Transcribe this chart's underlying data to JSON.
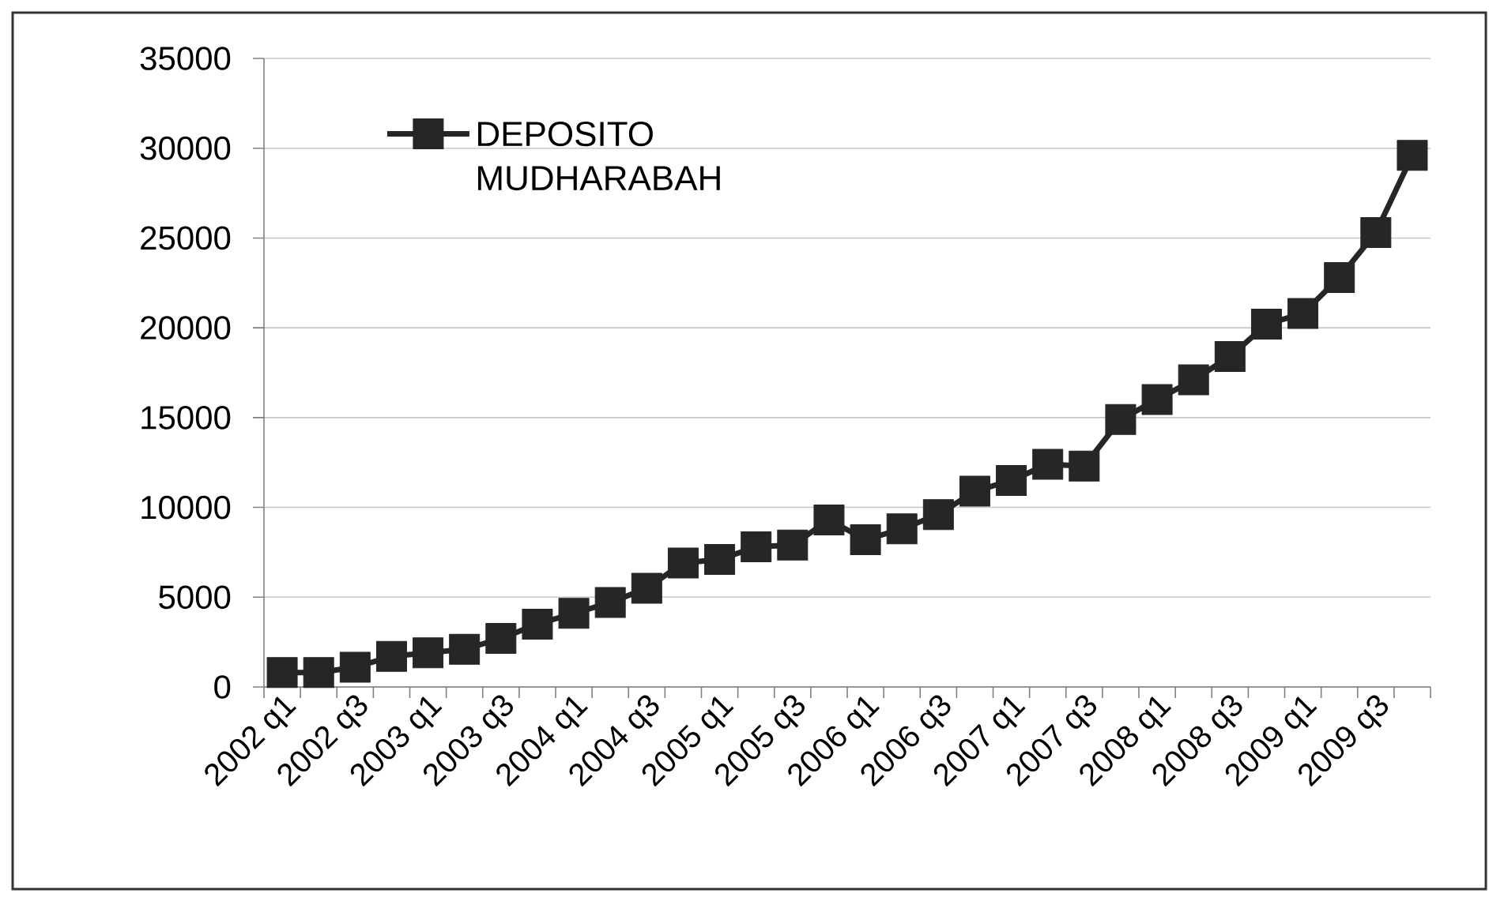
{
  "chart_data": {
    "type": "line",
    "categories": [
      "2002 q1",
      null,
      "2002 q3",
      null,
      "2003 q1",
      null,
      "2003 q3",
      null,
      "2004 q1",
      null,
      "2004 q3",
      null,
      "2005 q1",
      null,
      "2005 q3",
      null,
      "2006 q1",
      null,
      "2006 q3",
      null,
      "2007 q1",
      null,
      "2007 q3",
      null,
      "2008 q1",
      null,
      "2008 q3",
      null,
      "2009 q1",
      null,
      "2009 q3",
      null
    ],
    "series": [
      {
        "name": "DEPOSITO MUDHARABAH",
        "color": "#262626",
        "values": [
          800,
          800,
          1100,
          1700,
          1900,
          2100,
          2700,
          3500,
          4100,
          4700,
          5500,
          6900,
          7100,
          7800,
          7900,
          9300,
          8200,
          8800,
          9600,
          10900,
          11500,
          12400,
          12300,
          14900,
          16000,
          17100,
          18400,
          20200,
          20800,
          22800,
          25300,
          29600
        ]
      }
    ],
    "ylim": [
      0,
      35000
    ],
    "yticks": [
      0,
      5000,
      10000,
      15000,
      20000,
      25000,
      30000,
      35000
    ],
    "grid": "y",
    "legend": "top left",
    "marker": "square",
    "line_style": "solid"
  }
}
